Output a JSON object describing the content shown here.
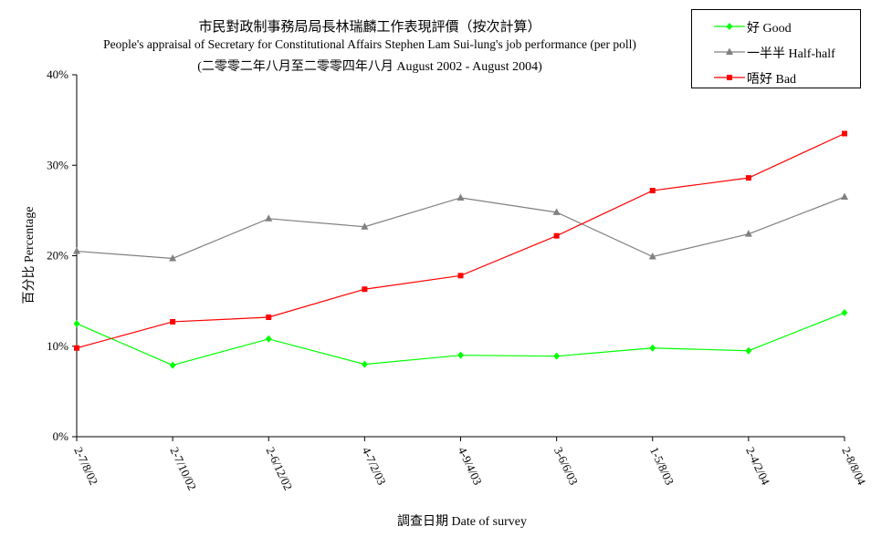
{
  "chart_data": {
    "type": "line",
    "title": "市民對政制事務局局長林瑞麟工作表現評價（按次計算）",
    "subtitle": "People's appraisal of Secretary for Constitutional Affairs Stephen Lam Sui-lung's job performance (per poll)",
    "subtitle2": "(二零零二年八月至二零零四年八月 August 2002 - August 2004)",
    "xlabel": "調查日期 Date of survey",
    "ylabel": "百分比 Percentage",
    "categories": [
      "2-7/8/02",
      "2-7/10/02",
      "2-6/12/02",
      "4-7/2/03",
      "4-9/4/03",
      "3-6/6/03",
      "1-5/8/03",
      "2-4/2/04",
      "2-8/8/04"
    ],
    "ylim": [
      0,
      40
    ],
    "yticks": [
      "0%",
      "10%",
      "20%",
      "30%",
      "40%"
    ],
    "grid": false,
    "legend_position": "top-right",
    "series": [
      {
        "name": "好 Good",
        "color": "#00ff00",
        "marker": "diamond",
        "values": [
          12.5,
          7.9,
          10.8,
          8.0,
          9.0,
          8.9,
          9.8,
          9.5,
          13.7
        ]
      },
      {
        "name": "一半半 Half-half",
        "color": "#808080",
        "marker": "triangle",
        "values": [
          20.5,
          19.7,
          24.1,
          23.2,
          26.4,
          24.8,
          19.9,
          22.4,
          26.5
        ]
      },
      {
        "name": "唔好 Bad",
        "color": "#ff0000",
        "marker": "square",
        "values": [
          9.8,
          12.7,
          13.2,
          16.3,
          17.8,
          22.2,
          27.2,
          28.6,
          33.5
        ]
      }
    ]
  }
}
